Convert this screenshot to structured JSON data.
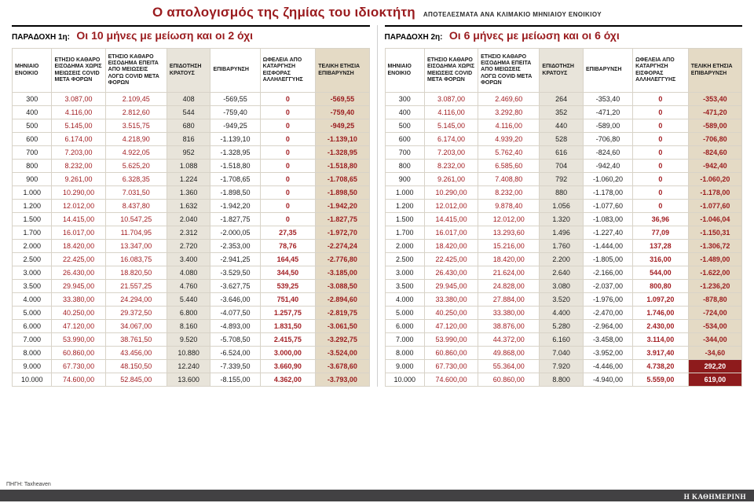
{
  "header": {
    "title": "Ο απολογισμός της ζημίας του ιδιοκτήτη",
    "subtitle": "ΑΠΟΤΕΛΕΣΜΑΤΑ ΑΝΑ ΚΛΙΜΑΚΙΟ ΜΗΝΙΑΙΟΥ ΕΝΟΙΚΙΟΥ"
  },
  "footer": {
    "source": "ΠΗΓΗ: Taxheaven",
    "brand": "Η ΚΑΘΗΜΕΡΙΝΗ"
  },
  "colors": {
    "accent_red": "#9a1b1e",
    "highlight_bg": "#8e1b1c",
    "subsidy_col_bg": "#e8e4da",
    "final_col_bg": "#e4dac5"
  },
  "chart_data": [
    {
      "type": "table",
      "label": "ΠΑΡΑΔΟΧΗ 1η:",
      "title": "Οι 10 μήνες με μείωση και οι 2 όχι",
      "columns": [
        "ΜΗΝΙΑΙΟ ΕΝΟΙΚΙΟ",
        "ΕΤΗΣΙΟ ΚΑΘΑΡΟ ΕΙΣΟΔΗΜΑ ΧΩΡΙΣ ΜΕΙΩΣΕΙΣ COVID ΜΕΤΑ ΦΟΡΩΝ",
        "ΕΤΗΣΙΟ ΚΑΘΑΡΟ ΕΙΣΟΔΗΜΑ ΕΠΕΙΤΑ ΑΠΟ ΜΕΙΩΣΕΙΣ ΛΟΓΩ COVID ΜΕΤΑ ΦΟΡΩΝ",
        "ΕΠΙΔΟΤΗΣΗ ΚΡΑΤΟΥΣ",
        "ΕΠΙΒΑΡΥΝΣΗ",
        "ΩΦΕΛΕΙΑ ΑΠΟ ΚΑΤΑΡΓΗΣΗ ΕΙΣΦΟΡΑΣ ΑΛΛΗΛΕΓΓΥΗΣ",
        "ΤΕΛΙΚΗ ΕΤΗΣΙΑ ΕΠΙΒΑΡΥΝΣΗ"
      ],
      "highlight_final_rows": [],
      "rows": [
        [
          "300",
          "3.087,00",
          "2.109,45",
          "408",
          "-569,55",
          "0",
          "-569,55"
        ],
        [
          "400",
          "4.116,00",
          "2.812,60",
          "544",
          "-759,40",
          "0",
          "-759,40"
        ],
        [
          "500",
          "5.145,00",
          "3.515,75",
          "680",
          "-949,25",
          "0",
          "-949,25"
        ],
        [
          "600",
          "6.174,00",
          "4.218,90",
          "816",
          "-1.139,10",
          "0",
          "-1.139,10"
        ],
        [
          "700",
          "7.203,00",
          "4.922,05",
          "952",
          "-1.328,95",
          "0",
          "-1.328,95"
        ],
        [
          "800",
          "8.232,00",
          "5.625,20",
          "1.088",
          "-1.518,80",
          "0",
          "-1.518,80"
        ],
        [
          "900",
          "9.261,00",
          "6.328,35",
          "1.224",
          "-1.708,65",
          "0",
          "-1.708,65"
        ],
        [
          "1.000",
          "10.290,00",
          "7.031,50",
          "1.360",
          "-1.898,50",
          "0",
          "-1.898,50"
        ],
        [
          "1.200",
          "12.012,00",
          "8.437,80",
          "1.632",
          "-1.942,20",
          "0",
          "-1.942,20"
        ],
        [
          "1.500",
          "14.415,00",
          "10.547,25",
          "2.040",
          "-1.827,75",
          "0",
          "-1.827,75"
        ],
        [
          "1.700",
          "16.017,00",
          "11.704,95",
          "2.312",
          "-2.000,05",
          "27,35",
          "-1.972,70"
        ],
        [
          "2.000",
          "18.420,00",
          "13.347,00",
          "2.720",
          "-2.353,00",
          "78,76",
          "-2.274,24"
        ],
        [
          "2.500",
          "22.425,00",
          "16.083,75",
          "3.400",
          "-2.941,25",
          "164,45",
          "-2.776,80"
        ],
        [
          "3.000",
          "26.430,00",
          "18.820,50",
          "4.080",
          "-3.529,50",
          "344,50",
          "-3.185,00"
        ],
        [
          "3.500",
          "29.945,00",
          "21.557,25",
          "4.760",
          "-3.627,75",
          "539,25",
          "-3.088,50"
        ],
        [
          "4.000",
          "33.380,00",
          "24.294,00",
          "5.440",
          "-3.646,00",
          "751,40",
          "-2.894,60"
        ],
        [
          "5.000",
          "40.250,00",
          "29.372,50",
          "6.800",
          "-4.077,50",
          "1.257,75",
          "-2.819,75"
        ],
        [
          "6.000",
          "47.120,00",
          "34.067,00",
          "8.160",
          "-4.893,00",
          "1.831,50",
          "-3.061,50"
        ],
        [
          "7.000",
          "53.990,00",
          "38.761,50",
          "9.520",
          "-5.708,50",
          "2.415,75",
          "-3.292,75"
        ],
        [
          "8.000",
          "60.860,00",
          "43.456,00",
          "10.880",
          "-6.524,00",
          "3.000,00",
          "-3.524,00"
        ],
        [
          "9.000",
          "67.730,00",
          "48.150,50",
          "12.240",
          "-7.339,50",
          "3.660,90",
          "-3.678,60"
        ],
        [
          "10.000",
          "74.600,00",
          "52.845,00",
          "13.600",
          "-8.155,00",
          "4.362,00",
          "-3.793,00"
        ]
      ]
    },
    {
      "type": "table",
      "label": "ΠΑΡΑΔΟΧΗ 2η:",
      "title": "Οι 6 μήνες με μείωση και οι 6 όχι",
      "columns": [
        "ΜΗΝΙΑΙΟ ΕΝΟΙΚΙΟ",
        "ΕΤΗΣΙΟ ΚΑΘΑΡΟ ΕΙΣΟΔΗΜΑ ΧΩΡΙΣ ΜΕΙΩΣΕΙΣ COVID ΜΕΤΑ ΦΟΡΩΝ",
        "ΕΤΗΣΙΟ ΚΑΘΑΡΟ ΕΙΣΟΔΗΜΑ ΕΠΕΙΤΑ ΑΠΟ ΜΕΙΩΣΕΙΣ ΛΟΓΩ COVID ΜΕΤΑ ΦΟΡΩΝ",
        "ΕΠΙΔΟΤΗΣΗ ΚΡΑΤΟΥΣ",
        "ΕΠΙΒΑΡΥΝΣΗ",
        "ΩΦΕΛΕΙΑ ΑΠΟ ΚΑΤΑΡΓΗΣΗ ΕΙΣΦΟΡΑΣ ΑΛΛΗΛΕΓΓΥΗΣ",
        "ΤΕΛΙΚΗ ΕΤΗΣΙΑ ΕΠΙΒΑΡΥΝΣΗ"
      ],
      "highlight_final_rows": [
        20,
        21
      ],
      "rows": [
        [
          "300",
          "3.087,00",
          "2.469,60",
          "264",
          "-353,40",
          "0",
          "-353,40"
        ],
        [
          "400",
          "4.116,00",
          "3.292,80",
          "352",
          "-471,20",
          "0",
          "-471,20"
        ],
        [
          "500",
          "5.145,00",
          "4.116,00",
          "440",
          "-589,00",
          "0",
          "-589,00"
        ],
        [
          "600",
          "6.174,00",
          "4.939,20",
          "528",
          "-706,80",
          "0",
          "-706,80"
        ],
        [
          "700",
          "7.203,00",
          "5.762,40",
          "616",
          "-824,60",
          "0",
          "-824,60"
        ],
        [
          "800",
          "8.232,00",
          "6.585,60",
          "704",
          "-942,40",
          "0",
          "-942,40"
        ],
        [
          "900",
          "9.261,00",
          "7.408,80",
          "792",
          "-1.060,20",
          "0",
          "-1.060,20"
        ],
        [
          "1.000",
          "10.290,00",
          "8.232,00",
          "880",
          "-1.178,00",
          "0",
          "-1.178,00"
        ],
        [
          "1.200",
          "12.012,00",
          "9.878,40",
          "1.056",
          "-1.077,60",
          "0",
          "-1.077,60"
        ],
        [
          "1.500",
          "14.415,00",
          "12.012,00",
          "1.320",
          "-1.083,00",
          "36,96",
          "-1.046,04"
        ],
        [
          "1.700",
          "16.017,00",
          "13.293,60",
          "1.496",
          "-1.227,40",
          "77,09",
          "-1.150,31"
        ],
        [
          "2.000",
          "18.420,00",
          "15.216,00",
          "1.760",
          "-1.444,00",
          "137,28",
          "-1.306,72"
        ],
        [
          "2.500",
          "22.425,00",
          "18.420,00",
          "2.200",
          "-1.805,00",
          "316,00",
          "-1.489,00"
        ],
        [
          "3.000",
          "26.430,00",
          "21.624,00",
          "2.640",
          "-2.166,00",
          "544,00",
          "-1.622,00"
        ],
        [
          "3.500",
          "29.945,00",
          "24.828,00",
          "3.080",
          "-2.037,00",
          "800,80",
          "-1.236,20"
        ],
        [
          "4.000",
          "33.380,00",
          "27.884,00",
          "3.520",
          "-1.976,00",
          "1.097,20",
          "-878,80"
        ],
        [
          "5.000",
          "40.250,00",
          "33.380,00",
          "4.400",
          "-2.470,00",
          "1.746,00",
          "-724,00"
        ],
        [
          "6.000",
          "47.120,00",
          "38.876,00",
          "5.280",
          "-2.964,00",
          "2.430,00",
          "-534,00"
        ],
        [
          "7.000",
          "53.990,00",
          "44.372,00",
          "6.160",
          "-3.458,00",
          "3.114,00",
          "-344,00"
        ],
        [
          "8.000",
          "60.860,00",
          "49.868,00",
          "7.040",
          "-3.952,00",
          "3.917,40",
          "-34,60"
        ],
        [
          "9.000",
          "67.730,00",
          "55.364,00",
          "7.920",
          "-4.446,00",
          "4.738,20",
          "292,20"
        ],
        [
          "10.000",
          "74.600,00",
          "60.860,00",
          "8.800",
          "-4.940,00",
          "5.559,00",
          "619,00"
        ]
      ]
    }
  ]
}
